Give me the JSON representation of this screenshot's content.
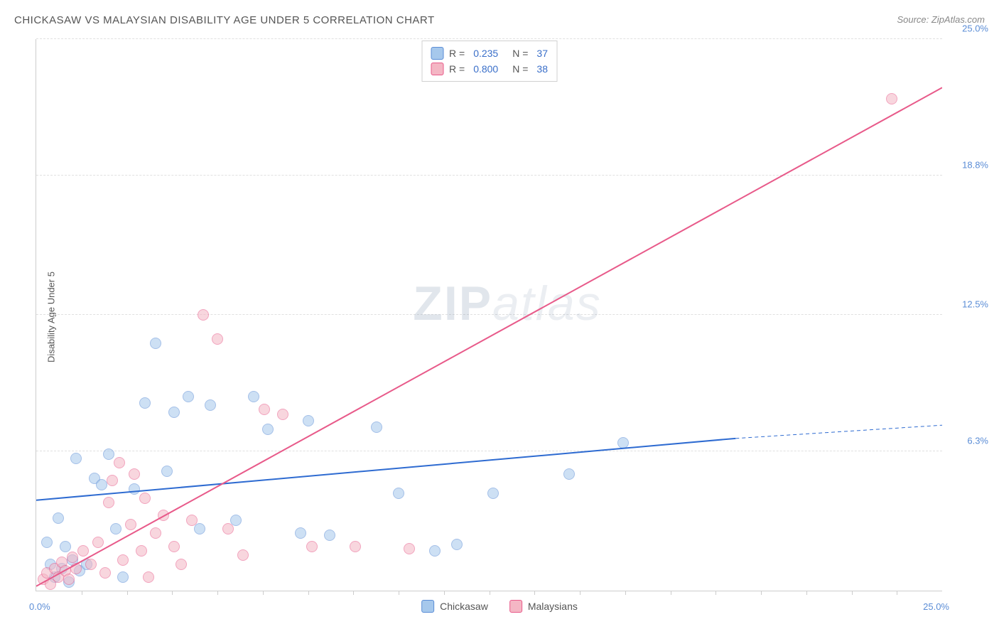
{
  "title": "CHICKASAW VS MALAYSIAN DISABILITY AGE UNDER 5 CORRELATION CHART",
  "source_label": "Source: ",
  "source_name": "ZipAtlas.com",
  "y_axis_label": "Disability Age Under 5",
  "watermark_a": "ZIP",
  "watermark_b": "atlas",
  "chart": {
    "type": "scatter",
    "xlim": [
      0,
      25
    ],
    "ylim": [
      0,
      25
    ],
    "x_tick_labels": [
      "0.0%",
      "25.0%"
    ],
    "y_tick_labels": [
      "6.3%",
      "12.5%",
      "18.8%",
      "25.0%"
    ],
    "y_tick_values": [
      6.3,
      12.5,
      18.8,
      25.0
    ],
    "x_minor_ticks": [
      1.25,
      2.5,
      3.75,
      5,
      6.25,
      7.5,
      8.75,
      10,
      11.25,
      12.5,
      13.75,
      15,
      16.25,
      17.5,
      18.75,
      20,
      21.25,
      22.5,
      23.75
    ],
    "background_color": "#ffffff",
    "grid_color": "#e0e0e0",
    "axis_color": "#cccccc",
    "tick_label_color": "#5b8dd6",
    "marker_radius": 8,
    "marker_opacity": 0.55,
    "series": [
      {
        "name": "Chickasaw",
        "fill_color": "#a6c8ec",
        "stroke_color": "#5b8dd6",
        "R": "0.235",
        "N": "37",
        "trend": {
          "x1": 0,
          "y1": 4.1,
          "x2": 19.3,
          "y2": 6.9,
          "dash_x2": 25,
          "dash_y2": 7.5,
          "color": "#2e6bd1",
          "width": 2
        },
        "points": [
          [
            0.3,
            2.2
          ],
          [
            0.4,
            1.2
          ],
          [
            0.5,
            0.6
          ],
          [
            0.6,
            3.3
          ],
          [
            0.7,
            1.0
          ],
          [
            0.8,
            2.0
          ],
          [
            0.9,
            0.4
          ],
          [
            1.0,
            1.4
          ],
          [
            1.1,
            6.0
          ],
          [
            1.2,
            0.9
          ],
          [
            1.4,
            1.2
          ],
          [
            1.6,
            5.1
          ],
          [
            1.8,
            4.8
          ],
          [
            2.0,
            6.2
          ],
          [
            2.2,
            2.8
          ],
          [
            2.4,
            0.6
          ],
          [
            2.7,
            4.6
          ],
          [
            3.0,
            8.5
          ],
          [
            3.3,
            11.2
          ],
          [
            3.6,
            5.4
          ],
          [
            3.8,
            8.1
          ],
          [
            4.2,
            8.8
          ],
          [
            4.5,
            2.8
          ],
          [
            4.8,
            8.4
          ],
          [
            5.5,
            3.2
          ],
          [
            6.0,
            8.8
          ],
          [
            6.4,
            7.3
          ],
          [
            7.3,
            2.6
          ],
          [
            7.5,
            7.7
          ],
          [
            8.1,
            2.5
          ],
          [
            9.4,
            7.4
          ],
          [
            10.0,
            4.4
          ],
          [
            11.0,
            1.8
          ],
          [
            11.6,
            2.1
          ],
          [
            12.6,
            4.4
          ],
          [
            14.7,
            5.3
          ],
          [
            16.2,
            6.7
          ]
        ]
      },
      {
        "name": "Malaysians",
        "fill_color": "#f4b6c4",
        "stroke_color": "#e85a8a",
        "R": "0.800",
        "N": "38",
        "trend": {
          "x1": 0,
          "y1": 0.2,
          "x2": 25,
          "y2": 22.8,
          "color": "#e85a8a",
          "width": 2
        },
        "points": [
          [
            0.2,
            0.5
          ],
          [
            0.3,
            0.8
          ],
          [
            0.4,
            0.3
          ],
          [
            0.5,
            1.0
          ],
          [
            0.6,
            0.6
          ],
          [
            0.7,
            1.3
          ],
          [
            0.8,
            0.9
          ],
          [
            0.9,
            0.5
          ],
          [
            1.0,
            1.5
          ],
          [
            1.1,
            1.0
          ],
          [
            1.3,
            1.8
          ],
          [
            1.5,
            1.2
          ],
          [
            1.7,
            2.2
          ],
          [
            1.9,
            0.8
          ],
          [
            2.0,
            4.0
          ],
          [
            2.1,
            5.0
          ],
          [
            2.3,
            5.8
          ],
          [
            2.4,
            1.4
          ],
          [
            2.6,
            3.0
          ],
          [
            2.7,
            5.3
          ],
          [
            2.9,
            1.8
          ],
          [
            3.0,
            4.2
          ],
          [
            3.1,
            0.6
          ],
          [
            3.3,
            2.6
          ],
          [
            3.5,
            3.4
          ],
          [
            3.8,
            2.0
          ],
          [
            4.0,
            1.2
          ],
          [
            4.3,
            3.2
          ],
          [
            4.6,
            12.5
          ],
          [
            5.0,
            11.4
          ],
          [
            5.3,
            2.8
          ],
          [
            5.7,
            1.6
          ],
          [
            6.3,
            8.2
          ],
          [
            6.8,
            8.0
          ],
          [
            7.6,
            2.0
          ],
          [
            8.8,
            2.0
          ],
          [
            10.3,
            1.9
          ],
          [
            23.6,
            22.3
          ]
        ]
      }
    ]
  },
  "legend_bottom": [
    {
      "label": "Chickasaw",
      "fill": "#a6c8ec",
      "stroke": "#5b8dd6"
    },
    {
      "label": "Malaysians",
      "fill": "#f4b6c4",
      "stroke": "#e85a8a"
    }
  ]
}
